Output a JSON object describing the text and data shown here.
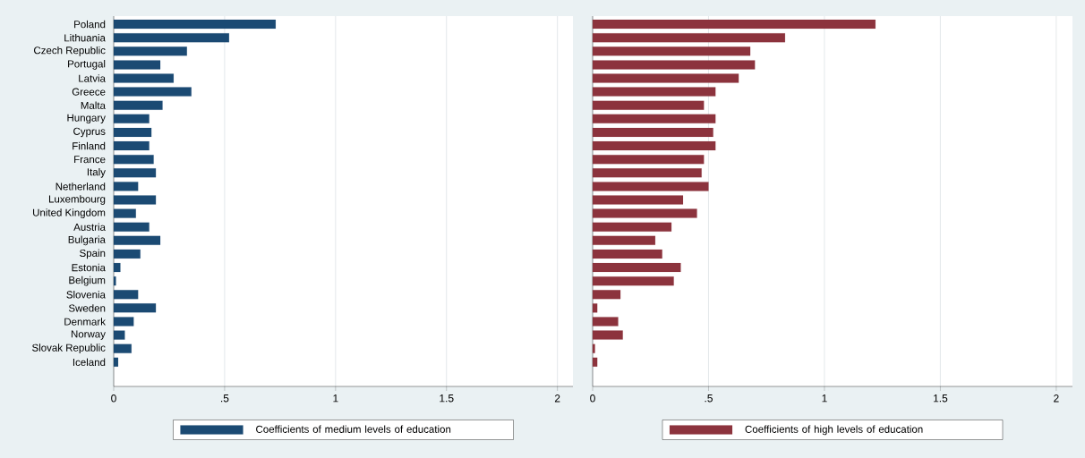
{
  "chart_data": [
    {
      "type": "bar",
      "orientation": "horizontal",
      "categories": [
        "Poland",
        "Lithuania",
        "Czech Republic",
        "Portugal",
        "Latvia",
        "Greece",
        "Malta",
        "Hungary",
        "Cyprus",
        "Finland",
        "France",
        "Italy",
        "Netherland",
        "Luxembourg",
        "United Kingdom",
        "Austria",
        "Bulgaria",
        "Spain",
        "Estonia",
        "Belgium",
        "Slovenia",
        "Sweden",
        "Denmark",
        "Norway",
        "Slovak Republic",
        "Iceland"
      ],
      "series": [
        {
          "name": "Coefficients of medium levels of education",
          "color": "#1b4a73",
          "values": [
            0.73,
            0.52,
            0.33,
            0.21,
            0.27,
            0.35,
            0.22,
            0.16,
            0.17,
            0.16,
            0.18,
            0.19,
            0.11,
            0.19,
            0.1,
            0.16,
            0.21,
            0.12,
            0.03,
            0.01,
            0.11,
            0.19,
            0.09,
            0.05,
            0.08,
            0.02
          ]
        }
      ],
      "xlim": [
        0,
        2.07
      ],
      "xticks": [
        0,
        {
          "value": 0.5,
          "label": ".5"
        },
        1,
        1.5,
        2
      ],
      "grid": "x",
      "legend": "bottom"
    },
    {
      "type": "bar",
      "orientation": "horizontal",
      "categories": [
        null,
        null,
        null,
        null,
        null,
        null,
        null,
        null,
        null,
        null,
        null,
        null,
        null,
        null,
        null,
        null,
        null,
        null,
        null,
        null,
        null,
        null,
        null,
        null,
        null,
        null
      ],
      "series": [
        {
          "name": "Coefficients of high levels of education",
          "color": "#8c333d",
          "values": [
            1.22,
            0.83,
            0.68,
            0.7,
            0.63,
            0.53,
            0.48,
            0.53,
            0.52,
            0.53,
            0.48,
            0.47,
            0.5,
            0.39,
            0.45,
            0.34,
            0.27,
            0.3,
            0.38,
            0.35,
            0.12,
            0.02,
            0.11,
            0.13,
            0.01,
            0.02
          ]
        }
      ],
      "xlim": [
        0,
        2.07
      ],
      "xticks": [
        0,
        {
          "value": 0.5,
          "label": ".5"
        },
        1,
        1.5,
        2
      ],
      "grid": "x",
      "legend": "bottom",
      "tick_labels": "x"
    }
  ]
}
